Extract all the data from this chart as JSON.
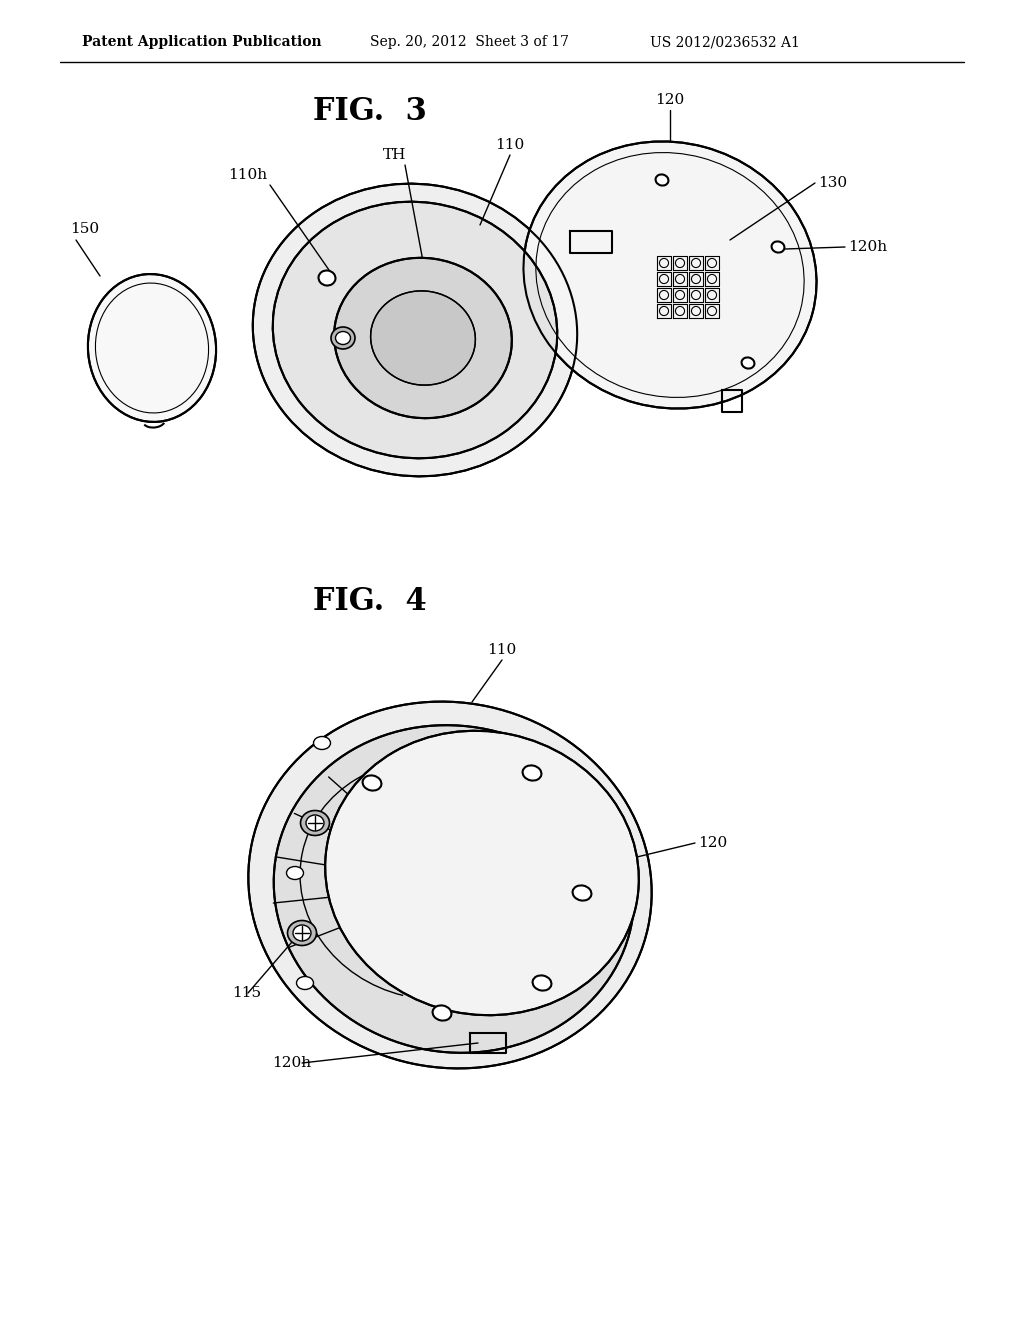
{
  "bg_color": "#ffffff",
  "header_left": "Patent Application Publication",
  "header_mid": "Sep. 20, 2012  Sheet 3 of 17",
  "header_right": "US 2012/0236532 A1",
  "fig3_title": "FIG.  3",
  "fig4_title": "FIG.  4",
  "line_color": "#000000",
  "line_width": 1.5,
  "text_color": "#000000"
}
